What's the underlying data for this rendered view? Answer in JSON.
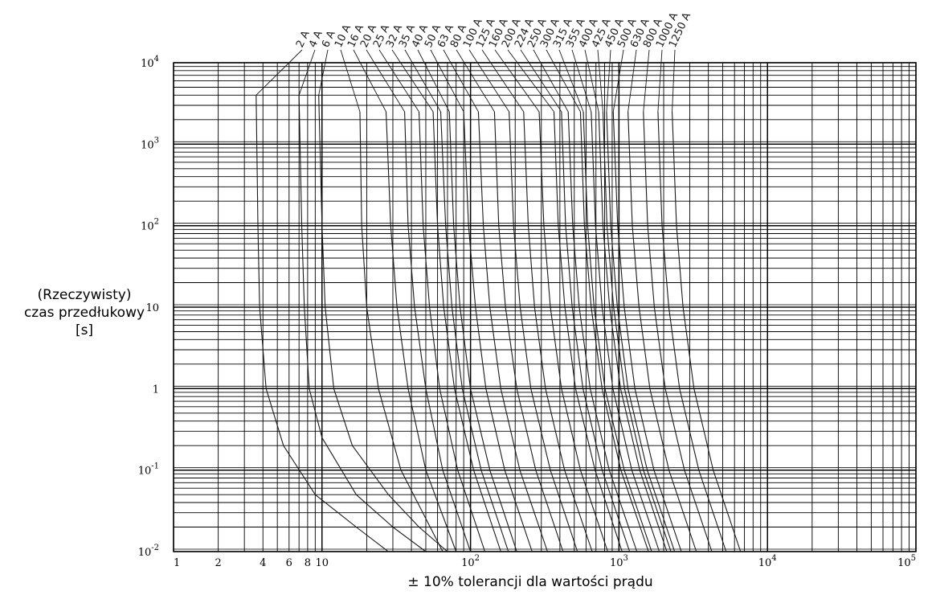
{
  "chart_data": {
    "type": "line",
    "title": "",
    "xlabel": "± 10% tolerancji dla wartości prądu",
    "ylabel_lines": [
      "(Rzeczywisty)",
      "czas przedłukowy",
      "[s]"
    ],
    "x_scale": "log",
    "y_scale": "log",
    "xlim": [
      1,
      100000
    ],
    "ylim": [
      0.01,
      10000
    ],
    "grid": true,
    "x_tick_labels": [
      {
        "value": 1,
        "label": "1"
      },
      {
        "value": 2,
        "label": "2"
      },
      {
        "value": 4,
        "label": "4"
      },
      {
        "value": 6,
        "label": "6"
      },
      {
        "value": 8,
        "label": "8"
      },
      {
        "value": 10,
        "label": "10"
      },
      {
        "value": 100,
        "base": "10",
        "exp": "2"
      },
      {
        "value": 1000,
        "base": "10",
        "exp": "3"
      },
      {
        "value": 10000,
        "base": "10",
        "exp": "4"
      },
      {
        "value": 100000,
        "base": "10",
        "exp": "5"
      }
    ],
    "y_tick_labels": [
      {
        "value": 0.01,
        "base": "10",
        "exp": "-2"
      },
      {
        "value": 0.1,
        "base": "10",
        "exp": "-1"
      },
      {
        "value": 1,
        "label": "1"
      },
      {
        "value": 10,
        "label": "10"
      },
      {
        "value": 100,
        "base": "10",
        "exp": "2"
      },
      {
        "value": 1000,
        "base": "10",
        "exp": "3"
      },
      {
        "value": 10000,
        "base": "10",
        "exp": "4"
      }
    ],
    "series": [
      {
        "name": "2 A",
        "points": [
          [
            3.6,
            4000
          ],
          [
            3.7,
            100
          ],
          [
            3.8,
            10
          ],
          [
            4.2,
            1
          ],
          [
            5.5,
            0.2
          ],
          [
            9,
            0.05
          ],
          [
            17,
            0.02
          ],
          [
            28,
            0.01
          ]
        ]
      },
      {
        "name": "4 A",
        "points": [
          [
            7,
            4000
          ],
          [
            7.3,
            100
          ],
          [
            7.6,
            10
          ],
          [
            8.2,
            1
          ],
          [
            10,
            0.25
          ],
          [
            17,
            0.05
          ],
          [
            30,
            0.02
          ],
          [
            50,
            0.01
          ]
        ]
      },
      {
        "name": "6 A",
        "points": [
          [
            9.5,
            4000
          ],
          [
            10,
            100
          ],
          [
            10.5,
            10
          ],
          [
            12,
            1
          ],
          [
            16,
            0.2
          ],
          [
            28,
            0.05
          ],
          [
            45,
            0.02
          ],
          [
            70,
            0.01
          ]
        ]
      },
      {
        "name": "10 A",
        "points": [
          [
            18,
            2500
          ],
          [
            18.5,
            100
          ],
          [
            20,
            10
          ],
          [
            24,
            1
          ],
          [
            34,
            0.1
          ],
          [
            65,
            0.01
          ]
        ]
      },
      {
        "name": "16 A",
        "points": [
          [
            27,
            2500
          ],
          [
            29,
            100
          ],
          [
            32,
            10
          ],
          [
            38,
            1
          ],
          [
            50,
            0.1
          ],
          [
            80,
            0.01
          ]
        ]
      },
      {
        "name": "20 A",
        "points": [
          [
            36,
            2500
          ],
          [
            38,
            100
          ],
          [
            42,
            10
          ],
          [
            50,
            1
          ],
          [
            65,
            0.1
          ],
          [
            100,
            0.01
          ]
        ]
      },
      {
        "name": "25 A",
        "points": [
          [
            45,
            2500
          ],
          [
            48,
            100
          ],
          [
            53,
            10
          ],
          [
            62,
            1
          ],
          [
            82,
            0.1
          ],
          [
            125,
            0.01
          ]
        ]
      },
      {
        "name": "32 A",
        "points": [
          [
            56,
            2500
          ],
          [
            60,
            100
          ],
          [
            66,
            10
          ],
          [
            78,
            1
          ],
          [
            105,
            0.1
          ],
          [
            160,
            0.01
          ]
        ]
      },
      {
        "name": "35 A",
        "points": [
          [
            63,
            2500
          ],
          [
            68,
            100
          ],
          [
            75,
            10
          ],
          [
            88,
            1
          ],
          [
            118,
            0.1
          ],
          [
            180,
            0.01
          ]
        ]
      },
      {
        "name": "40 A",
        "points": [
          [
            72,
            2500
          ],
          [
            77,
            100
          ],
          [
            85,
            10
          ],
          [
            100,
            1
          ],
          [
            135,
            0.1
          ],
          [
            205,
            0.01
          ]
        ]
      },
      {
        "name": "50 A",
        "points": [
          [
            90,
            2500
          ],
          [
            97,
            100
          ],
          [
            108,
            10
          ],
          [
            127,
            1
          ],
          [
            170,
            0.1
          ],
          [
            260,
            0.01
          ]
        ]
      },
      {
        "name": "63 A",
        "points": [
          [
            113,
            2500
          ],
          [
            122,
            100
          ],
          [
            135,
            10
          ],
          [
            160,
            1
          ],
          [
            215,
            0.1
          ],
          [
            330,
            0.01
          ]
        ]
      },
      {
        "name": "80 A",
        "points": [
          [
            145,
            2500
          ],
          [
            155,
            100
          ],
          [
            172,
            10
          ],
          [
            205,
            1
          ],
          [
            275,
            0.1
          ],
          [
            420,
            0.01
          ]
        ]
      },
      {
        "name": "100 A",
        "points": [
          [
            182,
            2500
          ],
          [
            195,
            100
          ],
          [
            216,
            10
          ],
          [
            255,
            1
          ],
          [
            345,
            0.1
          ],
          [
            525,
            0.01
          ]
        ]
      },
      {
        "name": "125 A",
        "points": [
          [
            228,
            2500
          ],
          [
            245,
            100
          ],
          [
            270,
            10
          ],
          [
            320,
            1
          ],
          [
            430,
            0.1
          ],
          [
            660,
            0.01
          ]
        ]
      },
      {
        "name": "160 A",
        "points": [
          [
            290,
            2500
          ],
          [
            312,
            100
          ],
          [
            345,
            10
          ],
          [
            410,
            1
          ],
          [
            550,
            0.1
          ],
          [
            840,
            0.01
          ]
        ]
      },
      {
        "name": "200 A",
        "points": [
          [
            365,
            2500
          ],
          [
            390,
            100
          ],
          [
            432,
            10
          ],
          [
            510,
            1
          ],
          [
            690,
            0.1
          ],
          [
            1050,
            0.01
          ]
        ]
      },
      {
        "name": "224 A",
        "points": [
          [
            410,
            2500
          ],
          [
            437,
            100
          ],
          [
            484,
            10
          ],
          [
            572,
            1
          ],
          [
            770,
            0.1
          ],
          [
            1180,
            0.01
          ]
        ]
      },
      {
        "name": "250 A",
        "points": [
          [
            455,
            2500
          ],
          [
            488,
            100
          ],
          [
            540,
            10
          ],
          [
            640,
            1
          ],
          [
            860,
            0.1
          ],
          [
            1320,
            0.01
          ]
        ]
      },
      {
        "name": "300 A",
        "points": [
          [
            550,
            2500
          ],
          [
            585,
            100
          ],
          [
            650,
            10
          ],
          [
            770,
            1
          ],
          [
            1030,
            0.1
          ],
          [
            1580,
            0.01
          ]
        ]
      },
      {
        "name": "315 A",
        "points": [
          [
            575,
            2500
          ],
          [
            615,
            100
          ],
          [
            680,
            10
          ],
          [
            805,
            1
          ],
          [
            1085,
            0.1
          ],
          [
            1660,
            0.01
          ]
        ]
      },
      {
        "name": "355 A",
        "points": [
          [
            650,
            2500
          ],
          [
            695,
            100
          ],
          [
            770,
            10
          ],
          [
            910,
            1
          ],
          [
            1220,
            0.1
          ],
          [
            1870,
            0.01
          ]
        ]
      },
      {
        "name": "400 A",
        "points": [
          [
            730,
            2500
          ],
          [
            780,
            100
          ],
          [
            865,
            10
          ],
          [
            1025,
            1
          ],
          [
            1380,
            0.1
          ],
          [
            2100,
            0.01
          ]
        ]
      },
      {
        "name": "425 A",
        "points": [
          [
            780,
            2500
          ],
          [
            830,
            100
          ],
          [
            920,
            10
          ],
          [
            1090,
            1
          ],
          [
            1460,
            0.1
          ],
          [
            2240,
            0.01
          ]
        ]
      },
      {
        "name": "450 A",
        "points": [
          [
            825,
            2500
          ],
          [
            880,
            100
          ],
          [
            975,
            10
          ],
          [
            1150,
            1
          ],
          [
            1550,
            0.1
          ],
          [
            2370,
            0.01
          ]
        ]
      },
      {
        "name": "500 A",
        "points": [
          [
            915,
            2500
          ],
          [
            980,
            100
          ],
          [
            1085,
            10
          ],
          [
            1280,
            1
          ],
          [
            1720,
            0.1
          ],
          [
            2630,
            0.01
          ]
        ]
      },
      {
        "name": "630 A",
        "points": [
          [
            1150,
            2500
          ],
          [
            1230,
            100
          ],
          [
            1365,
            10
          ],
          [
            1615,
            1
          ],
          [
            2170,
            0.1
          ],
          [
            3320,
            0.01
          ]
        ]
      },
      {
        "name": "800 A",
        "points": [
          [
            1460,
            2500
          ],
          [
            1560,
            100
          ],
          [
            1730,
            10
          ],
          [
            2050,
            1
          ],
          [
            2760,
            0.1
          ],
          [
            4220,
            0.01
          ]
        ]
      },
      {
        "name": "1000 A",
        "points": [
          [
            1830,
            2500
          ],
          [
            1950,
            100
          ],
          [
            2165,
            10
          ],
          [
            2560,
            1
          ],
          [
            3450,
            0.1
          ],
          [
            5270,
            0.01
          ]
        ]
      },
      {
        "name": "1250 A",
        "points": [
          [
            2280,
            2500
          ],
          [
            2440,
            100
          ],
          [
            2700,
            10
          ],
          [
            3200,
            1
          ],
          [
            4310,
            0.1
          ],
          [
            6590,
            0.01
          ]
        ]
      }
    ]
  }
}
